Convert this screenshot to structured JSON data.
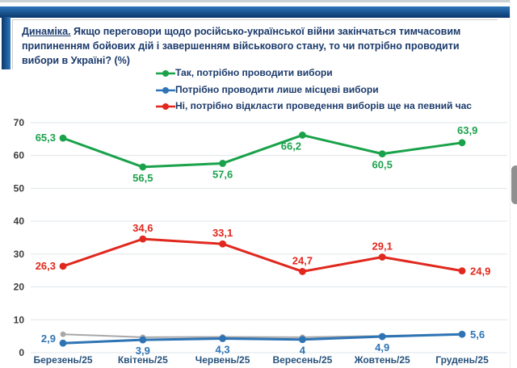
{
  "header": {
    "title_lead": "Динаміка.",
    "title_rest": " Якщо переговори щодо російсько-української війни закінчаться тимчасовим припиненням бойових дій і завершенням військового стану, то чи потрібно проводити вибори в Україні? (%)"
  },
  "colors": {
    "header_bar_top": "#2f76bb",
    "header_bar_bottom": "#0a386c",
    "title_text": "#1b3a6b",
    "green": "#1aa24b",
    "blue": "#2e74b5",
    "red": "#e0281e",
    "gray": "#a8a8a8",
    "gridline": "#dfe5ea",
    "y_tick": "#3c3c3c",
    "x_tick": "#26527c"
  },
  "chart_data": {
    "type": "line",
    "categories": [
      "Березень/25",
      "Квітень/25",
      "Червень/25",
      "Вересень/25",
      "Жовтень/25",
      "Грудень/25"
    ],
    "ylim": [
      0,
      70
    ],
    "yticks": [
      0,
      10,
      20,
      30,
      40,
      50,
      60,
      70
    ],
    "grid": true,
    "legend_position": "top-center",
    "series": [
      {
        "name": "Так, потрібно проводити вибори",
        "color": "#1aa24b",
        "values": [
          65.3,
          56.5,
          57.6,
          66.2,
          60.5,
          63.9
        ],
        "labels": [
          "65,3",
          "56,5",
          "57,6",
          "66,2",
          "60,5",
          "63,9"
        ],
        "label_pos": [
          "left",
          "below",
          "below",
          "below-left",
          "below",
          "above-right"
        ],
        "in_legend": true
      },
      {
        "name": "Потрібно проводити лише місцеві вибори",
        "color": "#2e74b5",
        "values": [
          2.9,
          3.9,
          4.3,
          4,
          4.9,
          5.6
        ],
        "labels": [
          "2,9",
          "3,9",
          "4,3",
          "4",
          "4,9",
          "5,6"
        ],
        "label_pos": [
          "left-above",
          "below",
          "below",
          "below",
          "below",
          "right"
        ],
        "in_legend": true
      },
      {
        "name": "Ні, потрібно відкласти проведення виборів ще на певний час",
        "color": "#e0281e",
        "values": [
          26.3,
          34.6,
          33.1,
          24.7,
          29.1,
          24.9
        ],
        "labels": [
          "26,3",
          "34,6",
          "33,1",
          "24,7",
          "29,1",
          "24,9"
        ],
        "label_pos": [
          "left",
          "above",
          "above",
          "above",
          "above",
          "right"
        ],
        "in_legend": true
      },
      {
        "name": "",
        "color": "#a8a8a8",
        "values": [
          5.6,
          4.7,
          4.8,
          4.7,
          5.1,
          5.7
        ],
        "labels": [
          "",
          "",
          "",
          "",
          "",
          ""
        ],
        "label_pos": [
          "",
          "",
          "",
          "",
          "",
          ""
        ],
        "in_legend": false,
        "estimated": true
      }
    ]
  }
}
